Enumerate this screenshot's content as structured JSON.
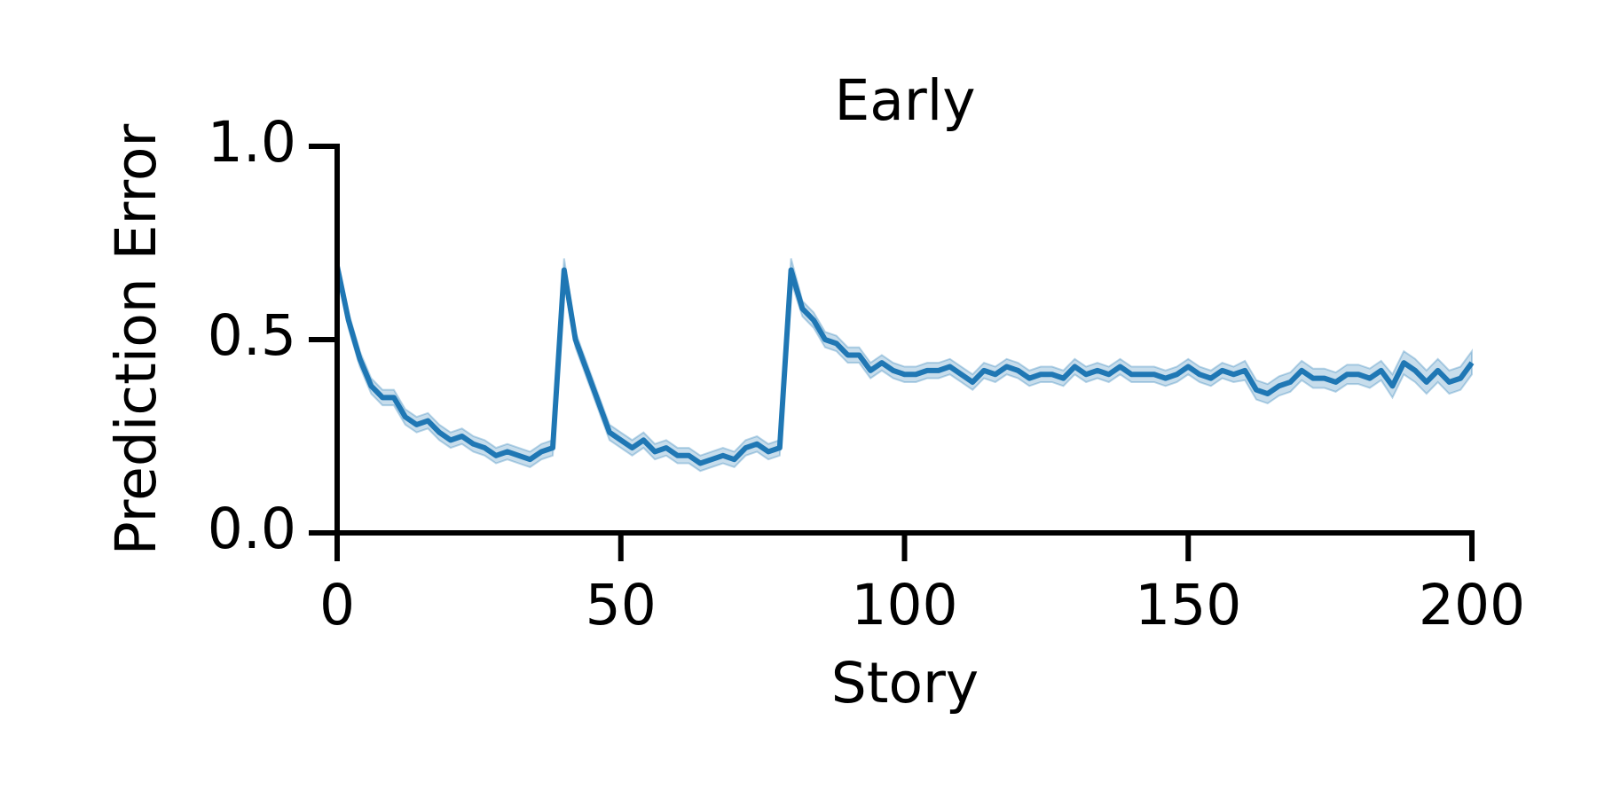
{
  "chart_data": {
    "type": "line",
    "title": "Early",
    "x_label": "Story",
    "y_label": "Prediction Error",
    "x": [
      0,
      2,
      4,
      6,
      8,
      10,
      12,
      14,
      16,
      18,
      20,
      22,
      24,
      26,
      28,
      30,
      32,
      34,
      36,
      38,
      40,
      42,
      44,
      46,
      48,
      50,
      52,
      54,
      56,
      58,
      60,
      62,
      64,
      66,
      68,
      70,
      72,
      74,
      76,
      78,
      80,
      82,
      84,
      86,
      88,
      90,
      92,
      94,
      96,
      98,
      100,
      102,
      104,
      106,
      108,
      110,
      112,
      114,
      116,
      118,
      120,
      122,
      124,
      126,
      128,
      130,
      132,
      134,
      136,
      138,
      140,
      142,
      144,
      146,
      148,
      150,
      152,
      154,
      156,
      158,
      160,
      162,
      164,
      166,
      168,
      170,
      172,
      174,
      176,
      178,
      180,
      182,
      184,
      186,
      188,
      190,
      192,
      194,
      196,
      198,
      200
    ],
    "series": [
      {
        "name": "Prediction Error",
        "color": "#1f77b4",
        "values": [
          0.69,
          0.55,
          0.45,
          0.38,
          0.35,
          0.35,
          0.3,
          0.28,
          0.29,
          0.26,
          0.24,
          0.25,
          0.23,
          0.22,
          0.2,
          0.21,
          0.2,
          0.19,
          0.21,
          0.22,
          0.68,
          0.5,
          0.42,
          0.34,
          0.26,
          0.24,
          0.22,
          0.24,
          0.21,
          0.22,
          0.2,
          0.2,
          0.18,
          0.19,
          0.2,
          0.19,
          0.22,
          0.23,
          0.21,
          0.22,
          0.68,
          0.58,
          0.55,
          0.5,
          0.49,
          0.46,
          0.46,
          0.42,
          0.44,
          0.42,
          0.41,
          0.41,
          0.42,
          0.42,
          0.43,
          0.41,
          0.39,
          0.42,
          0.41,
          0.43,
          0.42,
          0.4,
          0.41,
          0.41,
          0.4,
          0.43,
          0.41,
          0.42,
          0.41,
          0.43,
          0.41,
          0.41,
          0.41,
          0.4,
          0.41,
          0.43,
          0.41,
          0.4,
          0.42,
          0.41,
          0.42,
          0.37,
          0.36,
          0.38,
          0.39,
          0.42,
          0.4,
          0.4,
          0.39,
          0.41,
          0.41,
          0.4,
          0.42,
          0.38,
          0.44,
          0.42,
          0.39,
          0.42,
          0.39,
          0.4,
          0.44
        ],
        "ci": [
          0.02,
          0.02,
          0.02,
          0.02,
          0.02,
          0.02,
          0.02,
          0.02,
          0.02,
          0.02,
          0.02,
          0.02,
          0.02,
          0.02,
          0.02,
          0.02,
          0.02,
          0.02,
          0.02,
          0.02,
          0.03,
          0.02,
          0.02,
          0.02,
          0.02,
          0.02,
          0.02,
          0.02,
          0.02,
          0.02,
          0.02,
          0.02,
          0.02,
          0.02,
          0.02,
          0.02,
          0.02,
          0.02,
          0.02,
          0.02,
          0.03,
          0.02,
          0.02,
          0.02,
          0.02,
          0.02,
          0.02,
          0.02,
          0.02,
          0.02,
          0.02,
          0.02,
          0.02,
          0.02,
          0.02,
          0.02,
          0.02,
          0.02,
          0.02,
          0.02,
          0.02,
          0.02,
          0.02,
          0.02,
          0.02,
          0.02,
          0.02,
          0.02,
          0.02,
          0.02,
          0.02,
          0.02,
          0.02,
          0.02,
          0.02,
          0.02,
          0.02,
          0.02,
          0.02,
          0.02,
          0.025,
          0.025,
          0.025,
          0.025,
          0.025,
          0.025,
          0.025,
          0.025,
          0.025,
          0.025,
          0.025,
          0.025,
          0.025,
          0.03,
          0.03,
          0.03,
          0.03,
          0.03,
          0.03,
          0.03,
          0.03
        ]
      }
    ],
    "xlim": [
      0,
      200
    ],
    "xticks": [
      0,
      50,
      100,
      150,
      200
    ],
    "ylim": [
      0,
      1.0
    ],
    "yticks": [
      {
        "value": 0,
        "label": "0.0"
      },
      0.5,
      {
        "value": 1,
        "label": "1.0"
      }
    ],
    "grid": false
  }
}
